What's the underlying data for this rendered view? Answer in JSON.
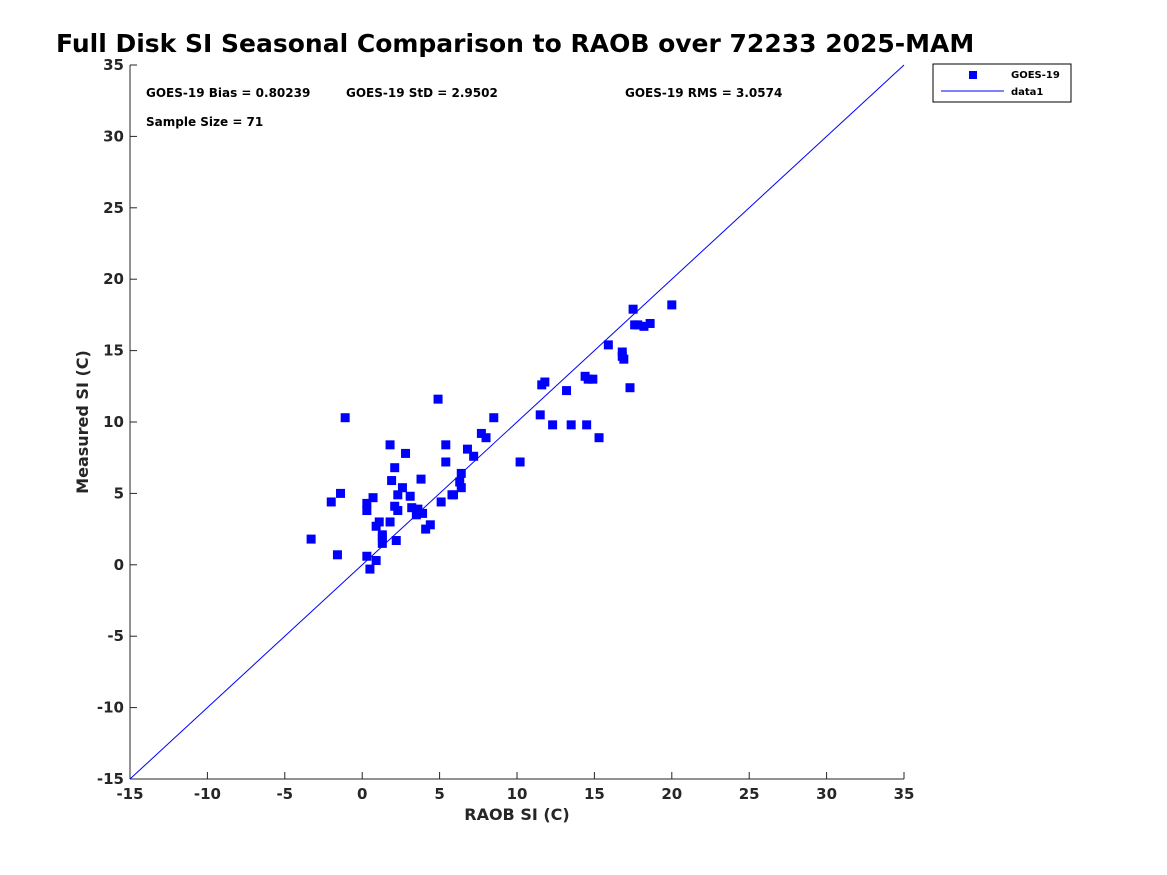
{
  "chart_data": {
    "type": "scatter",
    "title": "Full Disk SI Seasonal Comparison to RAOB over 72233 2025-MAM",
    "xlabel": "RAOB SI (C)",
    "ylabel": "Measured SI (C)",
    "xlim": [
      -15,
      35
    ],
    "ylim": [
      -15,
      35
    ],
    "xticks": [
      -15,
      -10,
      -5,
      0,
      5,
      10,
      15,
      20,
      25,
      30,
      35
    ],
    "yticks": [
      -15,
      -10,
      -5,
      0,
      5,
      10,
      15,
      20,
      25,
      30,
      35
    ],
    "grid": false,
    "colors": {
      "series": "#0000ff",
      "axis": "#262626"
    },
    "stats": {
      "bias": "GOES-19 Bias = 0.80239",
      "std": "GOES-19 StD = 2.9502",
      "rms": "GOES-19 RMS = 3.0574",
      "sample": "Sample Size = 71"
    },
    "legend": {
      "position": "top-right-outside",
      "entries": [
        "GOES-19",
        "data1"
      ]
    },
    "series": [
      {
        "name": "GOES-19",
        "marker": "square",
        "points": [
          [
            -3.3,
            1.8
          ],
          [
            -2.0,
            4.4
          ],
          [
            -1.6,
            0.7
          ],
          [
            -1.4,
            5.0
          ],
          [
            -1.1,
            10.3
          ],
          [
            0.3,
            0.6
          ],
          [
            0.3,
            3.8
          ],
          [
            0.3,
            4.3
          ],
          [
            0.5,
            -0.3
          ],
          [
            0.7,
            4.7
          ],
          [
            0.9,
            0.3
          ],
          [
            0.9,
            2.7
          ],
          [
            1.1,
            3.0
          ],
          [
            1.3,
            2.1
          ],
          [
            1.3,
            1.9
          ],
          [
            1.3,
            1.5
          ],
          [
            1.8,
            8.4
          ],
          [
            1.8,
            3.0
          ],
          [
            1.9,
            5.9
          ],
          [
            2.1,
            6.8
          ],
          [
            2.1,
            4.1
          ],
          [
            2.2,
            1.7
          ],
          [
            2.3,
            3.8
          ],
          [
            2.3,
            4.9
          ],
          [
            2.6,
            5.4
          ],
          [
            2.8,
            7.8
          ],
          [
            3.1,
            4.8
          ],
          [
            3.2,
            4.0
          ],
          [
            3.5,
            3.5
          ],
          [
            3.6,
            3.9
          ],
          [
            3.8,
            6.0
          ],
          [
            3.9,
            3.6
          ],
          [
            4.1,
            2.5
          ],
          [
            4.4,
            2.8
          ],
          [
            4.9,
            11.6
          ],
          [
            5.1,
            4.4
          ],
          [
            5.4,
            8.4
          ],
          [
            5.4,
            7.2
          ],
          [
            5.8,
            4.9
          ],
          [
            6.3,
            5.8
          ],
          [
            6.4,
            6.4
          ],
          [
            6.4,
            5.4
          ],
          [
            6.8,
            8.1
          ],
          [
            7.2,
            7.6
          ],
          [
            7.7,
            9.2
          ],
          [
            8.0,
            8.9
          ],
          [
            8.5,
            10.3
          ],
          [
            10.2,
            7.2
          ],
          [
            11.5,
            10.5
          ],
          [
            11.6,
            12.6
          ],
          [
            11.8,
            12.8
          ],
          [
            12.3,
            9.8
          ],
          [
            13.2,
            12.2
          ],
          [
            13.5,
            9.8
          ],
          [
            14.4,
            13.2
          ],
          [
            14.5,
            9.8
          ],
          [
            14.6,
            13.0
          ],
          [
            14.9,
            13.0
          ],
          [
            15.3,
            8.9
          ],
          [
            15.9,
            15.4
          ],
          [
            16.8,
            14.9
          ],
          [
            16.8,
            14.6
          ],
          [
            16.9,
            14.4
          ],
          [
            17.3,
            12.4
          ],
          [
            17.5,
            17.9
          ],
          [
            17.6,
            16.8
          ],
          [
            17.8,
            16.8
          ],
          [
            18.2,
            16.7
          ],
          [
            18.6,
            16.9
          ],
          [
            20.0,
            18.2
          ],
          [
            5.9,
            4.9
          ]
        ]
      },
      {
        "name": "data1",
        "type": "line",
        "points": [
          [
            -15,
            -15
          ],
          [
            35,
            35
          ]
        ]
      }
    ]
  }
}
